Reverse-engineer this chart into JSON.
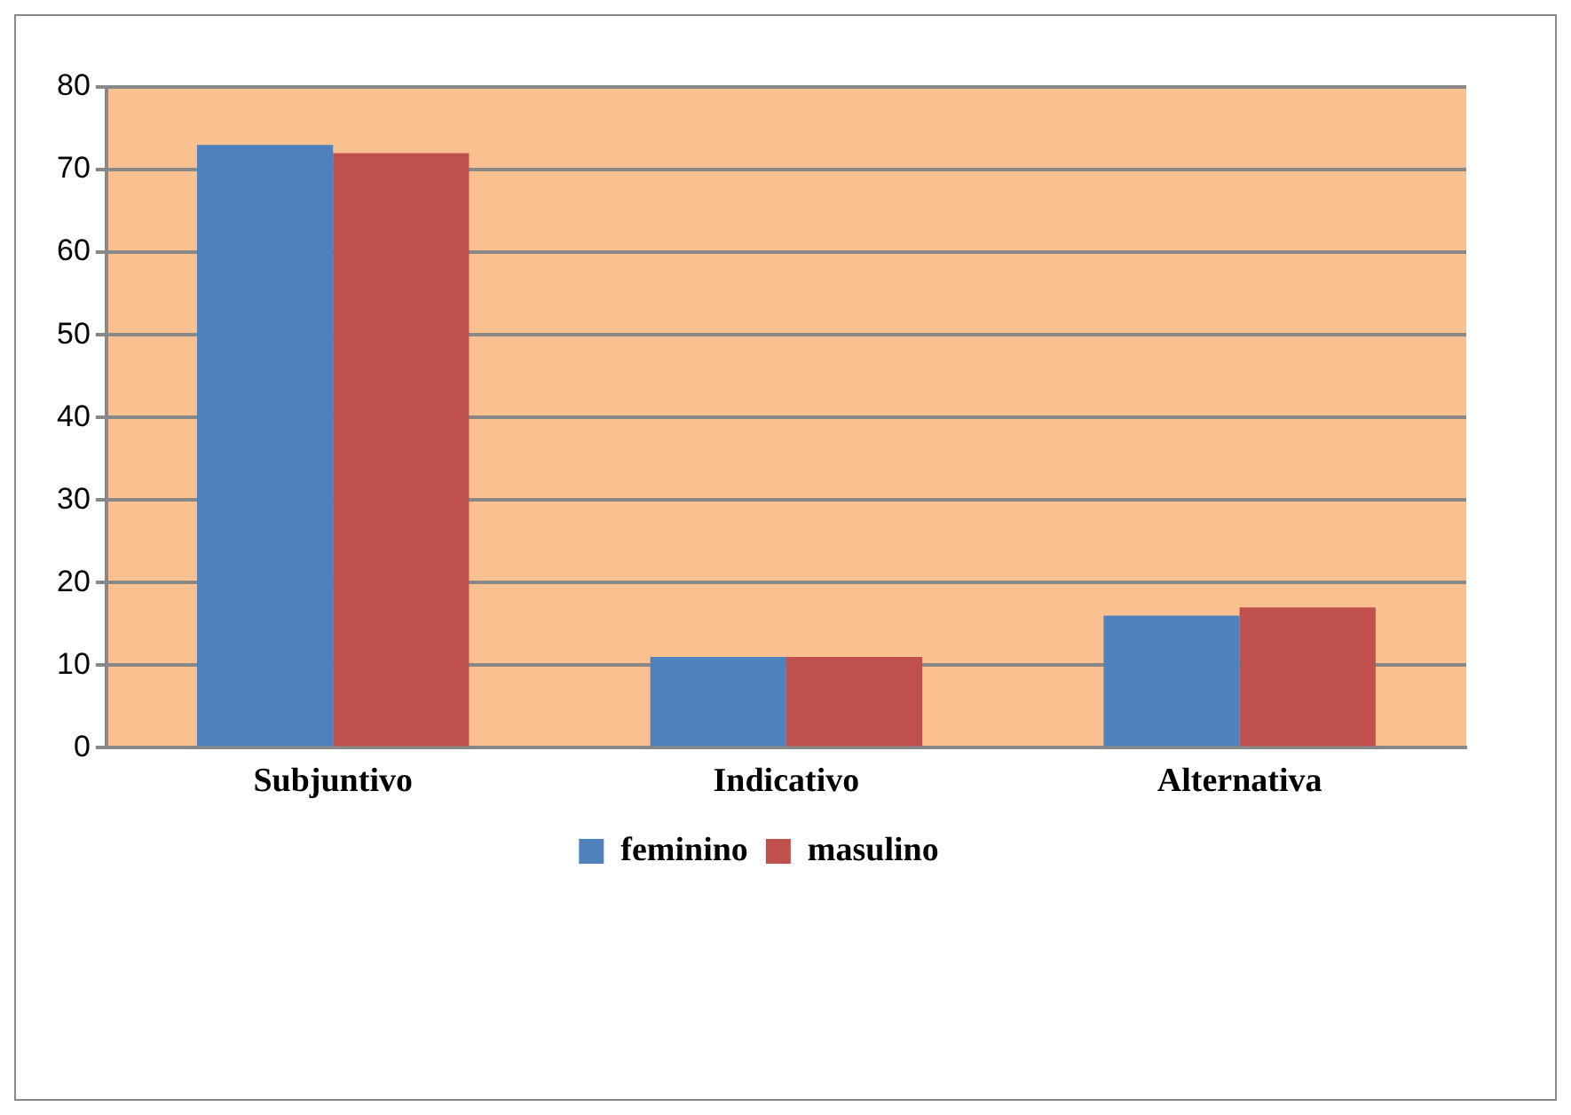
{
  "chart_data": {
    "type": "bar",
    "categories": [
      "Subjuntivo",
      "Indicativo",
      "Alternativa"
    ],
    "series": [
      {
        "name": "feminino",
        "color": "#4f81bd",
        "values": [
          73,
          11,
          16
        ]
      },
      {
        "name": "masulino",
        "color": "#c0504d",
        "values": [
          72,
          11,
          17
        ]
      }
    ],
    "ylim": [
      0,
      80
    ],
    "yticks": [
      0,
      10,
      20,
      30,
      40,
      50,
      60,
      70,
      80
    ],
    "grid": "y",
    "legend": "bottom"
  }
}
